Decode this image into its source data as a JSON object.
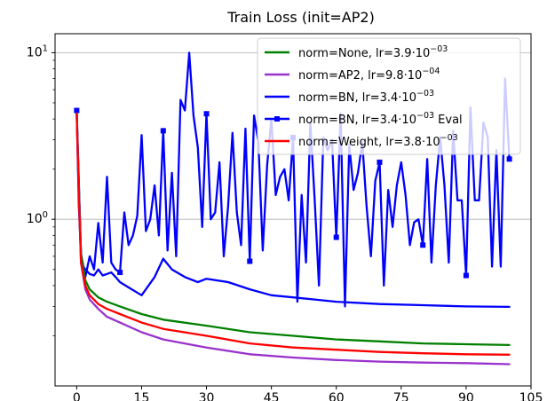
{
  "chart_data": {
    "type": "line",
    "title": "Train Loss (init=AP2)",
    "xlabel": "",
    "ylabel": "",
    "xlim": [
      -5,
      105
    ],
    "ylim": [
      0.1,
      13
    ],
    "yscale": "log",
    "grid": "horizontal major",
    "legend_position": "upper right",
    "xticks": [
      0,
      15,
      30,
      45,
      60,
      75,
      90,
      105
    ],
    "yticks": [
      {
        "value": 1,
        "base": "10",
        "exp": "0"
      },
      {
        "value": 10,
        "base": "10",
        "exp": "1"
      }
    ],
    "series": [
      {
        "name": "norm=None, lr=3.9·10⁻⁰³",
        "legend": {
          "pre": "norm=None, lr=3.9·10",
          "exp": "−03",
          "post": ""
        },
        "color": "#008000",
        "style": "line",
        "x": [
          0,
          0.5,
          1,
          2,
          3,
          5,
          7,
          10,
          15,
          20,
          30,
          40,
          50,
          60,
          70,
          80,
          90,
          100
        ],
        "y": [
          4.3,
          1.6,
          0.62,
          0.43,
          0.38,
          0.34,
          0.32,
          0.3,
          0.27,
          0.25,
          0.23,
          0.21,
          0.2,
          0.19,
          0.185,
          0.18,
          0.178,
          0.176
        ]
      },
      {
        "name": "norm=AP2, lr=9.8·10⁻⁰⁴",
        "legend": {
          "pre": "norm=AP2, lr=9.8·10",
          "exp": "−04",
          "post": ""
        },
        "color": "#9932cc",
        "style": "line",
        "x": [
          0,
          0.5,
          1,
          2,
          3,
          5,
          7,
          10,
          15,
          20,
          30,
          40,
          50,
          60,
          70,
          80,
          90,
          100
        ],
        "y": [
          4.2,
          1.5,
          0.55,
          0.38,
          0.33,
          0.29,
          0.26,
          0.24,
          0.21,
          0.19,
          0.17,
          0.155,
          0.148,
          0.143,
          0.14,
          0.138,
          0.137,
          0.135
        ]
      },
      {
        "name": "norm=BN, lr=3.4·10⁻⁰³",
        "legend": {
          "pre": "norm=BN, lr=3.4·10",
          "exp": "−03",
          "post": ""
        },
        "color": "#0000ff",
        "style": "line",
        "x": [
          0,
          0.5,
          1,
          1.5,
          2,
          3,
          4,
          5,
          6,
          7,
          8,
          9,
          10,
          12,
          15,
          18,
          20,
          22,
          25,
          28,
          30,
          35,
          40,
          45,
          50,
          55,
          60,
          70,
          80,
          90,
          100
        ],
        "y": [
          4.3,
          1.2,
          0.62,
          0.52,
          0.5,
          0.47,
          0.46,
          0.5,
          0.46,
          0.47,
          0.48,
          0.45,
          0.42,
          0.39,
          0.35,
          0.45,
          0.58,
          0.5,
          0.45,
          0.42,
          0.44,
          0.42,
          0.38,
          0.35,
          0.34,
          0.33,
          0.32,
          0.31,
          0.305,
          0.3,
          0.298
        ]
      },
      {
        "name": "norm=BN, lr=3.4·10⁻⁰³ Eval",
        "legend": {
          "pre": "norm=BN, lr=3.4·10",
          "exp": "−03",
          "post": " Eval"
        },
        "color": "#0000ff",
        "style": "line-marker",
        "x": [
          0,
          1,
          2,
          3,
          4,
          5,
          6,
          7,
          8,
          9,
          10,
          11,
          12,
          13,
          14,
          15,
          16,
          17,
          18,
          19,
          20,
          21,
          22,
          23,
          24,
          25,
          26,
          27,
          28,
          29,
          30,
          31,
          32,
          33,
          34,
          35,
          36,
          37,
          38,
          39,
          40,
          41,
          42,
          43,
          44,
          45,
          46,
          47,
          48,
          49,
          50,
          51,
          52,
          53,
          54,
          55,
          56,
          57,
          58,
          59,
          60,
          61,
          62,
          63,
          64,
          65,
          66,
          67,
          68,
          69,
          70,
          71,
          72,
          73,
          74,
          75,
          76,
          77,
          78,
          79,
          80,
          81,
          82,
          83,
          84,
          85,
          86,
          87,
          88,
          89,
          90,
          91,
          92,
          93,
          94,
          95,
          96,
          97,
          98,
          99,
          100
        ],
        "y": [
          4.5,
          0.62,
          0.45,
          0.6,
          0.5,
          0.95,
          0.55,
          1.8,
          0.55,
          0.5,
          0.48,
          1.1,
          0.7,
          0.8,
          1.05,
          3.2,
          0.85,
          1.0,
          1.6,
          0.8,
          3.4,
          0.65,
          1.9,
          0.6,
          5.2,
          4.5,
          10.0,
          4.2,
          2.7,
          0.9,
          4.3,
          1.0,
          1.1,
          2.2,
          0.6,
          1.2,
          3.3,
          1.1,
          0.7,
          3.5,
          0.56,
          4.2,
          2.9,
          0.65,
          2.1,
          4.0,
          1.4,
          1.8,
          2.0,
          1.3,
          3.1,
          0.32,
          1.4,
          0.55,
          3.8,
          1.3,
          0.4,
          3.1,
          2.6,
          3.0,
          0.78,
          4.3,
          0.3,
          2.8,
          1.5,
          1.9,
          2.9,
          1.2,
          0.6,
          1.7,
          2.2,
          0.4,
          1.5,
          0.9,
          1.6,
          2.2,
          1.4,
          0.7,
          0.96,
          1.0,
          0.7,
          2.3,
          0.55,
          1.6,
          3.1,
          1.6,
          0.55,
          3.4,
          1.3,
          1.3,
          0.46,
          4.7,
          1.3,
          1.3,
          3.8,
          3.1,
          0.52,
          2.6,
          0.52,
          7.0,
          2.3
        ]
      },
      {
        "name": "norm=Weight, lr=3.8·10⁻⁰³",
        "legend": {
          "pre": "norm=Weight, lr=3.8·10",
          "exp": "−03",
          "post": ""
        },
        "color": "#ff0000",
        "style": "line",
        "x": [
          0,
          0.5,
          1,
          2,
          3,
          5,
          7,
          10,
          15,
          20,
          30,
          40,
          50,
          60,
          70,
          80,
          90,
          100
        ],
        "y": [
          4.3,
          1.4,
          0.55,
          0.4,
          0.35,
          0.31,
          0.29,
          0.27,
          0.24,
          0.22,
          0.2,
          0.18,
          0.17,
          0.165,
          0.16,
          0.157,
          0.155,
          0.154
        ]
      }
    ]
  }
}
